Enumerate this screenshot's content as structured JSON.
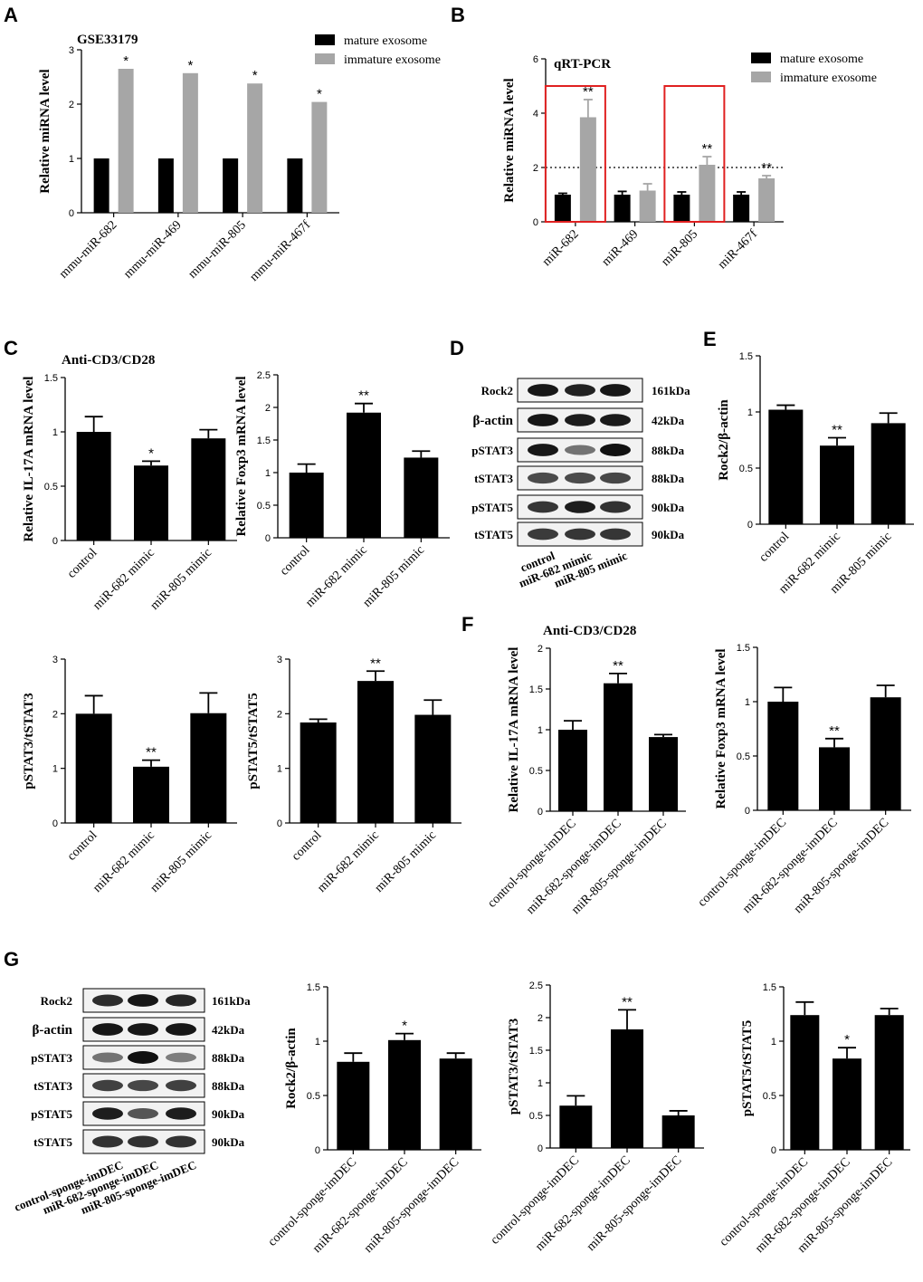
{
  "colors": {
    "mature": "#000000",
    "immature": "#a6a6a6",
    "bar": "#000000",
    "highlight": "#e02020"
  },
  "panel_letters": [
    "A",
    "B",
    "C",
    "D",
    "E",
    "F",
    "G"
  ],
  "chart_data": [
    {
      "id": "A",
      "type": "bar",
      "title": "GSE33179",
      "ylabel": "Relative miRNA level",
      "ylim": [
        0,
        3
      ],
      "yticks": [
        0,
        1,
        2,
        3
      ],
      "categories": [
        "mmu-miR-682",
        "mmu-miR-469",
        "mmu-miR-805",
        "mmu-miR-467f"
      ],
      "series": [
        {
          "name": "mature exosome",
          "color_key": "mature",
          "values": [
            1,
            1,
            1,
            1
          ]
        },
        {
          "name": "immature exosome",
          "color_key": "immature",
          "values": [
            2.65,
            2.57,
            2.38,
            2.04
          ],
          "sig": [
            "*",
            "*",
            "*",
            "*"
          ]
        }
      ],
      "legend": "top-right"
    },
    {
      "id": "B",
      "type": "bar",
      "title": "qRT-PCR",
      "ylabel": "Relative miRNA level",
      "ylim": [
        0,
        6
      ],
      "yticks": [
        0,
        2,
        4,
        6
      ],
      "categories": [
        "miR-682",
        "miR-469",
        "miR-805",
        "miR-467f"
      ],
      "series": [
        {
          "name": "mature exosome",
          "color_key": "mature",
          "values": [
            1,
            1,
            1,
            1
          ],
          "err": [
            0.05,
            0.12,
            0.1,
            0.1
          ]
        },
        {
          "name": "immature exosome",
          "color_key": "immature",
          "values": [
            3.85,
            1.15,
            2.1,
            1.6
          ],
          "err": [
            0.65,
            0.25,
            0.3,
            0.1
          ],
          "sig": [
            "**",
            "",
            "**",
            "**"
          ]
        }
      ],
      "reference_line": 2,
      "highlight_categories": [
        0,
        2
      ],
      "legend": "top-right"
    },
    {
      "id": "C-IL17A",
      "type": "bar",
      "title": "Anti-CD3/CD28",
      "ylabel": "Relative IL-17A mRNA level",
      "ylim": [
        0,
        1.5
      ],
      "yticks": [
        0,
        0.5,
        1,
        1.5
      ],
      "categories": [
        "control",
        "miR-682 mimic",
        "miR-805 mimic"
      ],
      "values": [
        1.0,
        0.69,
        0.94
      ],
      "err": [
        0.14,
        0.04,
        0.08
      ],
      "sig": [
        "",
        "*",
        ""
      ]
    },
    {
      "id": "C-Foxp3",
      "type": "bar",
      "title": "",
      "ylabel": "Relative Foxp3 mRNA level",
      "ylim": [
        0,
        2.5
      ],
      "yticks": [
        0,
        0.5,
        1,
        1.5,
        2,
        2.5
      ],
      "categories": [
        "control",
        "miR-682 mimic",
        "miR-805 mimic"
      ],
      "values": [
        1.0,
        1.92,
        1.23
      ],
      "err": [
        0.13,
        0.14,
        0.1
      ],
      "sig": [
        "",
        "**",
        ""
      ]
    },
    {
      "id": "C-pSTAT3",
      "type": "bar",
      "title": "",
      "ylabel": "pSTAT3/tSTAT3",
      "ylim": [
        0,
        3
      ],
      "yticks": [
        0,
        1,
        2,
        3
      ],
      "categories": [
        "control",
        "miR-682 mimic",
        "miR-805 mimic"
      ],
      "values": [
        2.0,
        1.03,
        2.01
      ],
      "err": [
        0.33,
        0.12,
        0.37
      ],
      "sig": [
        "",
        "**",
        ""
      ]
    },
    {
      "id": "C-pSTAT5",
      "type": "bar",
      "title": "",
      "ylabel": "pSTAT5/tSTAT5",
      "ylim": [
        0,
        3
      ],
      "yticks": [
        0,
        1,
        2,
        3
      ],
      "categories": [
        "control",
        "miR-682 mimic",
        "miR-805 mimic"
      ],
      "values": [
        1.84,
        2.6,
        1.98
      ],
      "err": [
        0.06,
        0.18,
        0.27
      ],
      "sig": [
        "",
        "**",
        ""
      ]
    },
    {
      "id": "E",
      "type": "bar",
      "title": "",
      "ylabel": "Rock2/β-actin",
      "ylim": [
        0,
        1.5
      ],
      "yticks": [
        0,
        0.5,
        1,
        1.5
      ],
      "categories": [
        "control",
        "miR-682 mimic",
        "miR-805 mimic"
      ],
      "values": [
        1.02,
        0.7,
        0.9
      ],
      "err": [
        0.04,
        0.07,
        0.09
      ],
      "sig": [
        "",
        "**",
        ""
      ]
    },
    {
      "id": "F-IL17A",
      "type": "bar",
      "title": "Anti-CD3/CD28",
      "ylabel": "Relative IL-17A mRNA level",
      "ylim": [
        0,
        2
      ],
      "yticks": [
        0,
        0.5,
        1,
        1.5,
        2
      ],
      "categories": [
        "control-sponge-imDEC",
        "miR-682-sponge-imDEC",
        "miR-805-sponge-imDEC"
      ],
      "values": [
        1.0,
        1.57,
        0.91
      ],
      "err": [
        0.11,
        0.12,
        0.03
      ],
      "sig": [
        "",
        "**",
        ""
      ]
    },
    {
      "id": "F-Foxp3",
      "type": "bar",
      "title": "",
      "ylabel": "Relative Foxp3 mRNA level",
      "ylim": [
        0,
        1.5
      ],
      "yticks": [
        0,
        0.5,
        1,
        1.5
      ],
      "categories": [
        "control-sponge-imDEC",
        "miR-682-sponge-imDEC",
        "miR-805-sponge-imDEC"
      ],
      "values": [
        1.0,
        0.58,
        1.04
      ],
      "err": [
        0.13,
        0.08,
        0.11
      ],
      "sig": [
        "",
        "**",
        ""
      ]
    },
    {
      "id": "G-Rock2",
      "type": "bar",
      "title": "",
      "ylabel": "Rock2/β-actin",
      "ylim": [
        0,
        1.5
      ],
      "yticks": [
        0,
        0.5,
        1,
        1.5
      ],
      "categories": [
        "control-sponge-imDEC",
        "miR-682-sponge-imDEC",
        "miR-805-sponge-imDEC"
      ],
      "values": [
        0.81,
        1.01,
        0.84
      ],
      "err": [
        0.08,
        0.06,
        0.05
      ],
      "sig": [
        "",
        "*",
        ""
      ]
    },
    {
      "id": "G-pSTAT3",
      "type": "bar",
      "title": "",
      "ylabel": "pSTAT3/tSTAT3",
      "ylim": [
        0,
        2.5
      ],
      "yticks": [
        0,
        0.5,
        1,
        1.5,
        2,
        2.5
      ],
      "categories": [
        "control-sponge-imDEC",
        "miR-682-sponge-imDEC",
        "miR-805-sponge-imDEC"
      ],
      "values": [
        0.65,
        1.82,
        0.5
      ],
      "err": [
        0.15,
        0.3,
        0.07
      ],
      "sig": [
        "",
        "**",
        ""
      ]
    },
    {
      "id": "G-pSTAT5",
      "type": "bar",
      "title": "",
      "ylabel": "pSTAT5/tSTAT5",
      "ylim": [
        0,
        1.5
      ],
      "yticks": [
        0,
        0.5,
        1,
        1.5
      ],
      "categories": [
        "control-sponge-imDEC",
        "miR-682-sponge-imDEC",
        "miR-805-sponge-imDEC"
      ],
      "values": [
        1.24,
        0.84,
        1.24
      ],
      "err": [
        0.12,
        0.1,
        0.06
      ],
      "sig": [
        "",
        "*",
        ""
      ]
    }
  ],
  "blots": [
    {
      "id": "D",
      "rows": [
        {
          "label": "Rock2",
          "kda": "161kDa",
          "intensity": [
            0.95,
            0.9,
            0.95
          ]
        },
        {
          "label": "β-actin",
          "kda": "42kDa",
          "intensity": [
            0.95,
            0.92,
            0.93
          ]
        },
        {
          "label": "pSTAT3",
          "kda": "88kDa",
          "intensity": [
            0.95,
            0.5,
            0.98
          ]
        },
        {
          "label": "tSTAT3",
          "kda": "88kDa",
          "intensity": [
            0.7,
            0.7,
            0.72
          ]
        },
        {
          "label": "pSTAT5",
          "kda": "90kDa",
          "intensity": [
            0.8,
            0.92,
            0.82
          ]
        },
        {
          "label": "tSTAT5",
          "kda": "90kDa",
          "intensity": [
            0.78,
            0.8,
            0.8
          ]
        }
      ],
      "lanes": [
        "control",
        "miR-682 mimic",
        "miR-805 mimic"
      ]
    },
    {
      "id": "G",
      "rows": [
        {
          "label": "Rock2",
          "kda": "161kDa",
          "intensity": [
            0.85,
            0.95,
            0.88
          ]
        },
        {
          "label": "β-actin",
          "kda": "42kDa",
          "intensity": [
            0.95,
            0.95,
            0.95
          ]
        },
        {
          "label": "pSTAT3",
          "kda": "88kDa",
          "intensity": [
            0.5,
            0.98,
            0.45
          ]
        },
        {
          "label": "tSTAT3",
          "kda": "88kDa",
          "intensity": [
            0.75,
            0.72,
            0.75
          ]
        },
        {
          "label": "pSTAT5",
          "kda": "90kDa",
          "intensity": [
            0.92,
            0.65,
            0.92
          ]
        },
        {
          "label": "tSTAT5",
          "kda": "90kDa",
          "intensity": [
            0.82,
            0.82,
            0.82
          ]
        }
      ],
      "lanes": [
        "control-sponge-imDEC",
        "miR-682-sponge-imDEC",
        "miR-805-sponge-imDEC"
      ]
    }
  ]
}
